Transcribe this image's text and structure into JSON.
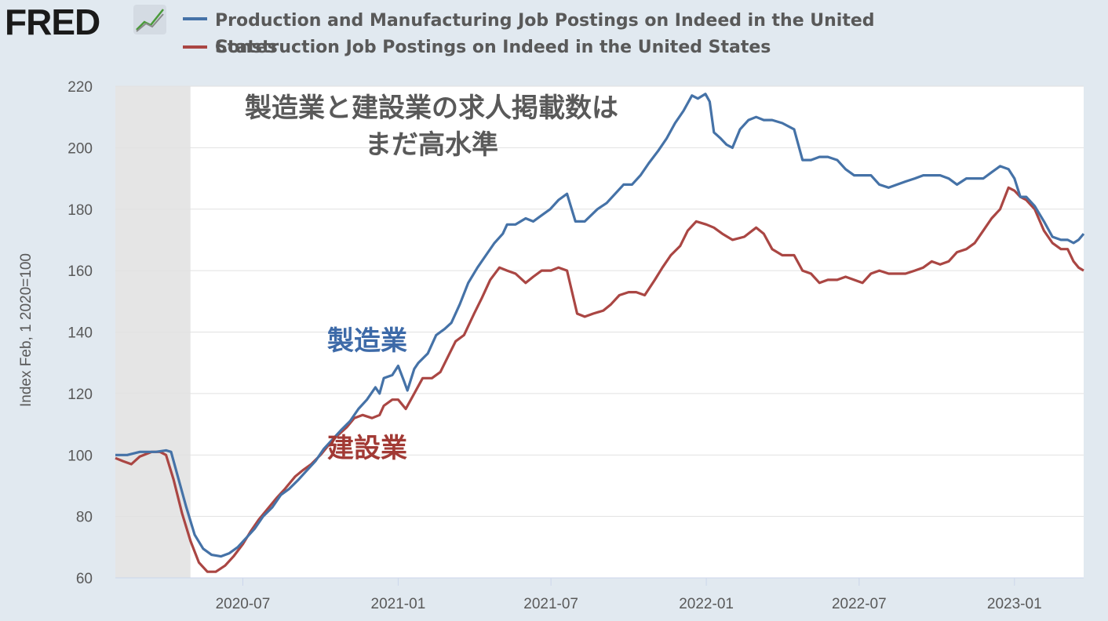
{
  "header": {
    "logo_text": "FRED",
    "logo_icon": "line-chart-icon"
  },
  "colors": {
    "background": "#e1e9f0",
    "plot_bg": "#ffffff",
    "recession": "#e5e5e5",
    "grid": "#e1e1e1",
    "manufacturing": "#4572a7",
    "construction": "#aa4643",
    "annotation_text": "#595959"
  },
  "chart_data": {
    "type": "line",
    "title": "",
    "ylabel": "Index Feb, 1 2020=100",
    "xlabel": "",
    "ylim": [
      60,
      220
    ],
    "xlim": [
      "2020-02-01",
      "2023-03-24"
    ],
    "yticks": [
      60,
      80,
      100,
      120,
      140,
      160,
      180,
      200,
      220
    ],
    "xticks": [
      "2020-07",
      "2021-01",
      "2021-07",
      "2022-01",
      "2022-07",
      "2023-01"
    ],
    "grid": true,
    "legend_position": "top",
    "recession_shading": [
      "2020-02-01",
      "2020-04-30"
    ],
    "annotations": {
      "title_line1": "製造業と建設業の求人掲載数は",
      "title_line2": "まだ高水準",
      "manufacturing_label": "製造業",
      "construction_label": "建設業"
    },
    "series": [
      {
        "name": "Production and Manufacturing Job Postings on Indeed in the United States",
        "legend_line1": "Production and Manufacturing Job Postings on Indeed in the United",
        "legend_line2": "States",
        "color": "#4572a7",
        "points": [
          [
            "2020-02-01",
            100
          ],
          [
            "2020-02-15",
            100
          ],
          [
            "2020-03-01",
            101
          ],
          [
            "2020-03-20",
            101
          ],
          [
            "2020-04-01",
            101.5
          ],
          [
            "2020-04-07",
            101
          ],
          [
            "2020-04-15",
            93
          ],
          [
            "2020-04-25",
            83
          ],
          [
            "2020-05-05",
            74
          ],
          [
            "2020-05-15",
            69.5
          ],
          [
            "2020-05-25",
            67.5
          ],
          [
            "2020-06-05",
            67
          ],
          [
            "2020-06-15",
            68
          ],
          [
            "2020-06-25",
            70
          ],
          [
            "2020-07-05",
            73
          ],
          [
            "2020-07-15",
            76
          ],
          [
            "2020-07-25",
            80
          ],
          [
            "2020-08-05",
            83
          ],
          [
            "2020-08-15",
            87
          ],
          [
            "2020-08-25",
            89
          ],
          [
            "2020-09-05",
            92
          ],
          [
            "2020-09-15",
            95
          ],
          [
            "2020-09-25",
            98
          ],
          [
            "2020-10-05",
            102
          ],
          [
            "2020-10-15",
            105
          ],
          [
            "2020-10-25",
            108
          ],
          [
            "2020-11-05",
            111
          ],
          [
            "2020-11-15",
            115
          ],
          [
            "2020-11-25",
            118
          ],
          [
            "2020-12-05",
            122
          ],
          [
            "2020-12-10",
            120
          ],
          [
            "2020-12-15",
            125
          ],
          [
            "2020-12-25",
            126
          ],
          [
            "2021-01-01",
            129
          ],
          [
            "2021-01-08",
            124
          ],
          [
            "2021-01-12",
            121
          ],
          [
            "2021-01-20",
            128
          ],
          [
            "2021-01-25",
            130
          ],
          [
            "2021-02-05",
            133
          ],
          [
            "2021-02-15",
            139
          ],
          [
            "2021-02-25",
            141
          ],
          [
            "2021-03-05",
            143
          ],
          [
            "2021-03-15",
            149
          ],
          [
            "2021-03-25",
            156
          ],
          [
            "2021-04-05",
            161
          ],
          [
            "2021-04-15",
            165
          ],
          [
            "2021-04-25",
            169
          ],
          [
            "2021-05-05",
            172
          ],
          [
            "2021-05-10",
            175
          ],
          [
            "2021-05-20",
            175
          ],
          [
            "2021-06-01",
            177
          ],
          [
            "2021-06-10",
            176
          ],
          [
            "2021-06-20",
            178
          ],
          [
            "2021-06-30",
            180
          ],
          [
            "2021-07-10",
            183
          ],
          [
            "2021-07-20",
            185
          ],
          [
            "2021-07-30",
            176
          ],
          [
            "2021-08-10",
            176
          ],
          [
            "2021-08-25",
            180
          ],
          [
            "2021-09-05",
            182
          ],
          [
            "2021-09-15",
            185
          ],
          [
            "2021-09-25",
            188
          ],
          [
            "2021-10-05",
            188
          ],
          [
            "2021-10-15",
            191
          ],
          [
            "2021-10-25",
            195
          ],
          [
            "2021-11-05",
            199
          ],
          [
            "2021-11-15",
            203
          ],
          [
            "2021-11-25",
            208
          ],
          [
            "2021-12-05",
            212
          ],
          [
            "2021-12-15",
            217
          ],
          [
            "2021-12-22",
            216
          ],
          [
            "2021-12-31",
            217.5
          ],
          [
            "2022-01-05",
            215
          ],
          [
            "2022-01-10",
            205
          ],
          [
            "2022-01-18",
            203
          ],
          [
            "2022-01-25",
            201
          ],
          [
            "2022-02-01",
            200
          ],
          [
            "2022-02-10",
            206
          ],
          [
            "2022-02-20",
            209
          ],
          [
            "2022-03-01",
            210
          ],
          [
            "2022-03-10",
            209
          ],
          [
            "2022-03-20",
            209
          ],
          [
            "2022-04-01",
            208
          ],
          [
            "2022-04-15",
            206
          ],
          [
            "2022-04-25",
            196
          ],
          [
            "2022-05-05",
            196
          ],
          [
            "2022-05-15",
            197
          ],
          [
            "2022-05-25",
            197
          ],
          [
            "2022-06-05",
            196
          ],
          [
            "2022-06-15",
            193
          ],
          [
            "2022-06-25",
            191
          ],
          [
            "2022-07-05",
            191
          ],
          [
            "2022-07-15",
            191
          ],
          [
            "2022-07-25",
            188
          ],
          [
            "2022-08-05",
            187
          ],
          [
            "2022-08-15",
            188
          ],
          [
            "2022-08-25",
            189
          ],
          [
            "2022-09-05",
            190
          ],
          [
            "2022-09-15",
            191
          ],
          [
            "2022-09-25",
            191
          ],
          [
            "2022-10-05",
            191
          ],
          [
            "2022-10-15",
            190
          ],
          [
            "2022-10-25",
            188
          ],
          [
            "2022-11-05",
            190
          ],
          [
            "2022-11-15",
            190
          ],
          [
            "2022-11-25",
            190
          ],
          [
            "2022-12-05",
            192
          ],
          [
            "2022-12-15",
            194
          ],
          [
            "2022-12-25",
            193
          ],
          [
            "2023-01-01",
            190
          ],
          [
            "2023-01-08",
            184
          ],
          [
            "2023-01-15",
            184
          ],
          [
            "2023-01-25",
            181
          ],
          [
            "2023-02-05",
            176
          ],
          [
            "2023-02-15",
            171
          ],
          [
            "2023-02-25",
            170
          ],
          [
            "2023-03-05",
            170
          ],
          [
            "2023-03-12",
            169
          ],
          [
            "2023-03-18",
            170
          ],
          [
            "2023-03-24",
            172
          ]
        ]
      },
      {
        "name": "Construction Job Postings on Indeed in the United States",
        "legend_line1": "Construction Job Postings on Indeed in the United States",
        "color": "#aa4643",
        "points": [
          [
            "2020-02-01",
            99
          ],
          [
            "2020-02-10",
            98
          ],
          [
            "2020-02-20",
            97
          ],
          [
            "2020-03-01",
            99.5
          ],
          [
            "2020-03-15",
            101
          ],
          [
            "2020-03-25",
            101
          ],
          [
            "2020-04-01",
            100
          ],
          [
            "2020-04-10",
            92
          ],
          [
            "2020-04-20",
            81
          ],
          [
            "2020-04-30",
            72
          ],
          [
            "2020-05-10",
            65
          ],
          [
            "2020-05-20",
            62
          ],
          [
            "2020-05-30",
            62
          ],
          [
            "2020-06-10",
            64
          ],
          [
            "2020-06-20",
            67
          ],
          [
            "2020-07-01",
            71
          ],
          [
            "2020-07-10",
            75
          ],
          [
            "2020-07-20",
            79
          ],
          [
            "2020-08-01",
            83
          ],
          [
            "2020-08-10",
            86
          ],
          [
            "2020-08-20",
            89
          ],
          [
            "2020-09-01",
            93
          ],
          [
            "2020-09-10",
            95
          ],
          [
            "2020-09-20",
            97
          ],
          [
            "2020-10-01",
            100
          ],
          [
            "2020-10-10",
            103
          ],
          [
            "2020-10-20",
            106
          ],
          [
            "2020-11-01",
            109
          ],
          [
            "2020-11-10",
            112
          ],
          [
            "2020-11-20",
            113
          ],
          [
            "2020-12-01",
            112
          ],
          [
            "2020-12-10",
            113
          ],
          [
            "2020-12-15",
            116
          ],
          [
            "2020-12-25",
            118
          ],
          [
            "2021-01-01",
            118
          ],
          [
            "2021-01-10",
            115
          ],
          [
            "2021-01-20",
            120
          ],
          [
            "2021-01-30",
            125
          ],
          [
            "2021-02-10",
            125
          ],
          [
            "2021-02-20",
            127
          ],
          [
            "2021-03-01",
            132
          ],
          [
            "2021-03-10",
            137
          ],
          [
            "2021-03-20",
            139
          ],
          [
            "2021-04-01",
            146
          ],
          [
            "2021-04-10",
            151
          ],
          [
            "2021-04-20",
            157
          ],
          [
            "2021-05-01",
            161
          ],
          [
            "2021-05-10",
            160
          ],
          [
            "2021-05-20",
            159
          ],
          [
            "2021-06-01",
            156
          ],
          [
            "2021-06-10",
            158
          ],
          [
            "2021-06-20",
            160
          ],
          [
            "2021-07-01",
            160
          ],
          [
            "2021-07-10",
            161
          ],
          [
            "2021-07-20",
            160
          ],
          [
            "2021-08-01",
            146
          ],
          [
            "2021-08-10",
            145
          ],
          [
            "2021-08-20",
            146
          ],
          [
            "2021-09-01",
            147
          ],
          [
            "2021-09-10",
            149
          ],
          [
            "2021-09-20",
            152
          ],
          [
            "2021-10-01",
            153
          ],
          [
            "2021-10-10",
            153
          ],
          [
            "2021-10-20",
            152
          ],
          [
            "2021-11-01",
            157
          ],
          [
            "2021-11-10",
            161
          ],
          [
            "2021-11-20",
            165
          ],
          [
            "2021-12-01",
            168
          ],
          [
            "2021-12-10",
            173
          ],
          [
            "2021-12-20",
            176
          ],
          [
            "2022-01-01",
            175
          ],
          [
            "2022-01-10",
            174
          ],
          [
            "2022-01-20",
            172
          ],
          [
            "2022-02-01",
            170
          ],
          [
            "2022-02-15",
            171
          ],
          [
            "2022-03-01",
            174
          ],
          [
            "2022-03-10",
            172
          ],
          [
            "2022-03-20",
            167
          ],
          [
            "2022-04-01",
            165
          ],
          [
            "2022-04-15",
            165
          ],
          [
            "2022-04-25",
            160
          ],
          [
            "2022-05-05",
            159
          ],
          [
            "2022-05-15",
            156
          ],
          [
            "2022-05-25",
            157
          ],
          [
            "2022-06-05",
            157
          ],
          [
            "2022-06-15",
            158
          ],
          [
            "2022-06-25",
            157
          ],
          [
            "2022-07-05",
            156
          ],
          [
            "2022-07-15",
            159
          ],
          [
            "2022-07-25",
            160
          ],
          [
            "2022-08-05",
            159
          ],
          [
            "2022-08-15",
            159
          ],
          [
            "2022-08-25",
            159
          ],
          [
            "2022-09-05",
            160
          ],
          [
            "2022-09-15",
            161
          ],
          [
            "2022-09-25",
            163
          ],
          [
            "2022-10-05",
            162
          ],
          [
            "2022-10-15",
            163
          ],
          [
            "2022-10-25",
            166
          ],
          [
            "2022-11-05",
            167
          ],
          [
            "2022-11-15",
            169
          ],
          [
            "2022-11-25",
            173
          ],
          [
            "2022-12-05",
            177
          ],
          [
            "2022-12-15",
            180
          ],
          [
            "2022-12-25",
            187
          ],
          [
            "2023-01-01",
            186
          ],
          [
            "2023-01-08",
            184
          ],
          [
            "2023-01-15",
            183
          ],
          [
            "2023-01-25",
            180
          ],
          [
            "2023-02-05",
            173
          ],
          [
            "2023-02-15",
            169
          ],
          [
            "2023-02-25",
            167
          ],
          [
            "2023-03-05",
            167
          ],
          [
            "2023-03-12",
            163
          ],
          [
            "2023-03-18",
            161
          ],
          [
            "2023-03-24",
            160
          ]
        ]
      }
    ]
  }
}
